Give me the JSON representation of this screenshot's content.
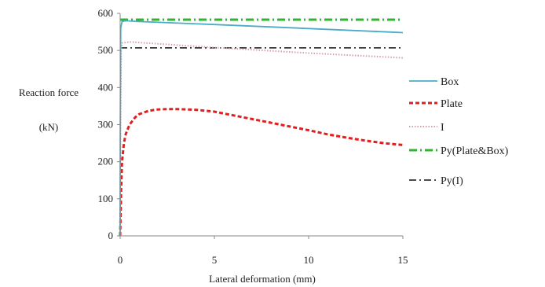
{
  "chart_data": {
    "type": "line",
    "xlabel": "Lateral deformation (mm)",
    "ylabel": "Reaction force",
    "ylabel_unit": "(kN)",
    "xlim": [
      0,
      15
    ],
    "ylim": [
      0,
      600
    ],
    "x_ticks": [
      0,
      5,
      10,
      15
    ],
    "y_ticks": [
      0,
      100,
      200,
      300,
      400,
      500,
      600
    ],
    "grid": false,
    "legend_position": "right",
    "series": [
      {
        "name": "Box",
        "color": "#4bacc6",
        "style": "solid",
        "x": [
          0,
          0.01,
          0.03,
          0.1,
          0.3,
          1,
          5,
          10,
          15
        ],
        "y": [
          0,
          300,
          560,
          578,
          580,
          578,
          570,
          559,
          548
        ]
      },
      {
        "name": "Plate",
        "color": "#e02020",
        "style": "dashed",
        "x": [
          0,
          0.05,
          0.1,
          0.2,
          0.3,
          0.5,
          0.8,
          1.0,
          1.5,
          2.0,
          2.5,
          3.0,
          4.0,
          5.0,
          6.0,
          7.0,
          8.0,
          9.0,
          10.0,
          11.0,
          12.0,
          13.0,
          14.0,
          15.0
        ],
        "y": [
          0,
          120,
          200,
          250,
          275,
          300,
          320,
          328,
          337,
          341,
          342,
          342,
          340,
          335,
          325,
          315,
          305,
          295,
          285,
          274,
          265,
          257,
          250,
          245
        ]
      },
      {
        "name": "I",
        "color": "#d6a0a6",
        "style": "dotted",
        "x": [
          0,
          0.02,
          0.05,
          0.1,
          0.5,
          5,
          10,
          15
        ],
        "y": [
          0,
          300,
          500,
          520,
          523,
          508,
          493,
          480
        ]
      },
      {
        "name": "Py(Plate&Box)",
        "color": "#2fb52f",
        "style": "dash-dot",
        "x": [
          0,
          15
        ],
        "y": [
          583,
          583
        ]
      },
      {
        "name": "Py(I)",
        "color": "#111111",
        "style": "dash-dot",
        "x": [
          0,
          15
        ],
        "y": [
          507,
          507
        ]
      }
    ]
  }
}
